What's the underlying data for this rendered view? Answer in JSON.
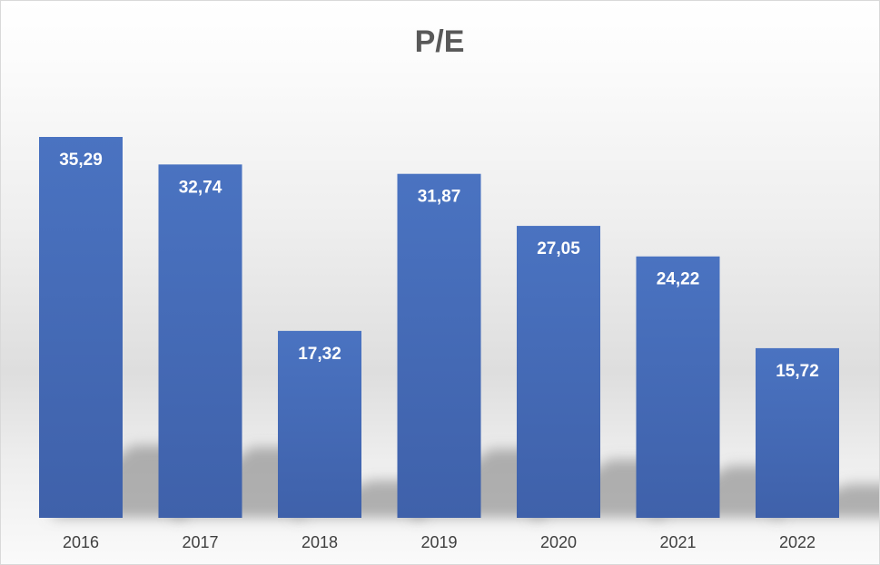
{
  "chart_data": {
    "type": "bar",
    "title": "P/E",
    "xlabel": "",
    "ylabel": "",
    "categories": [
      "2016",
      "2017",
      "2018",
      "2019",
      "2020",
      "2021",
      "2022"
    ],
    "values": [
      35.29,
      32.74,
      17.32,
      31.87,
      27.05,
      24.22,
      15.72
    ],
    "data_labels": [
      "35,29",
      "32,74",
      "17,32",
      "31,87",
      "27,05",
      "24,22",
      "15,72"
    ],
    "ylim": [
      0,
      35.29
    ],
    "grid": false,
    "legend": "none",
    "colors": {
      "bar_top": "#4a73c1",
      "bar_bottom": "#3f61aa",
      "label": "#ffffff",
      "title": "#595959",
      "tick": "#404040"
    }
  }
}
